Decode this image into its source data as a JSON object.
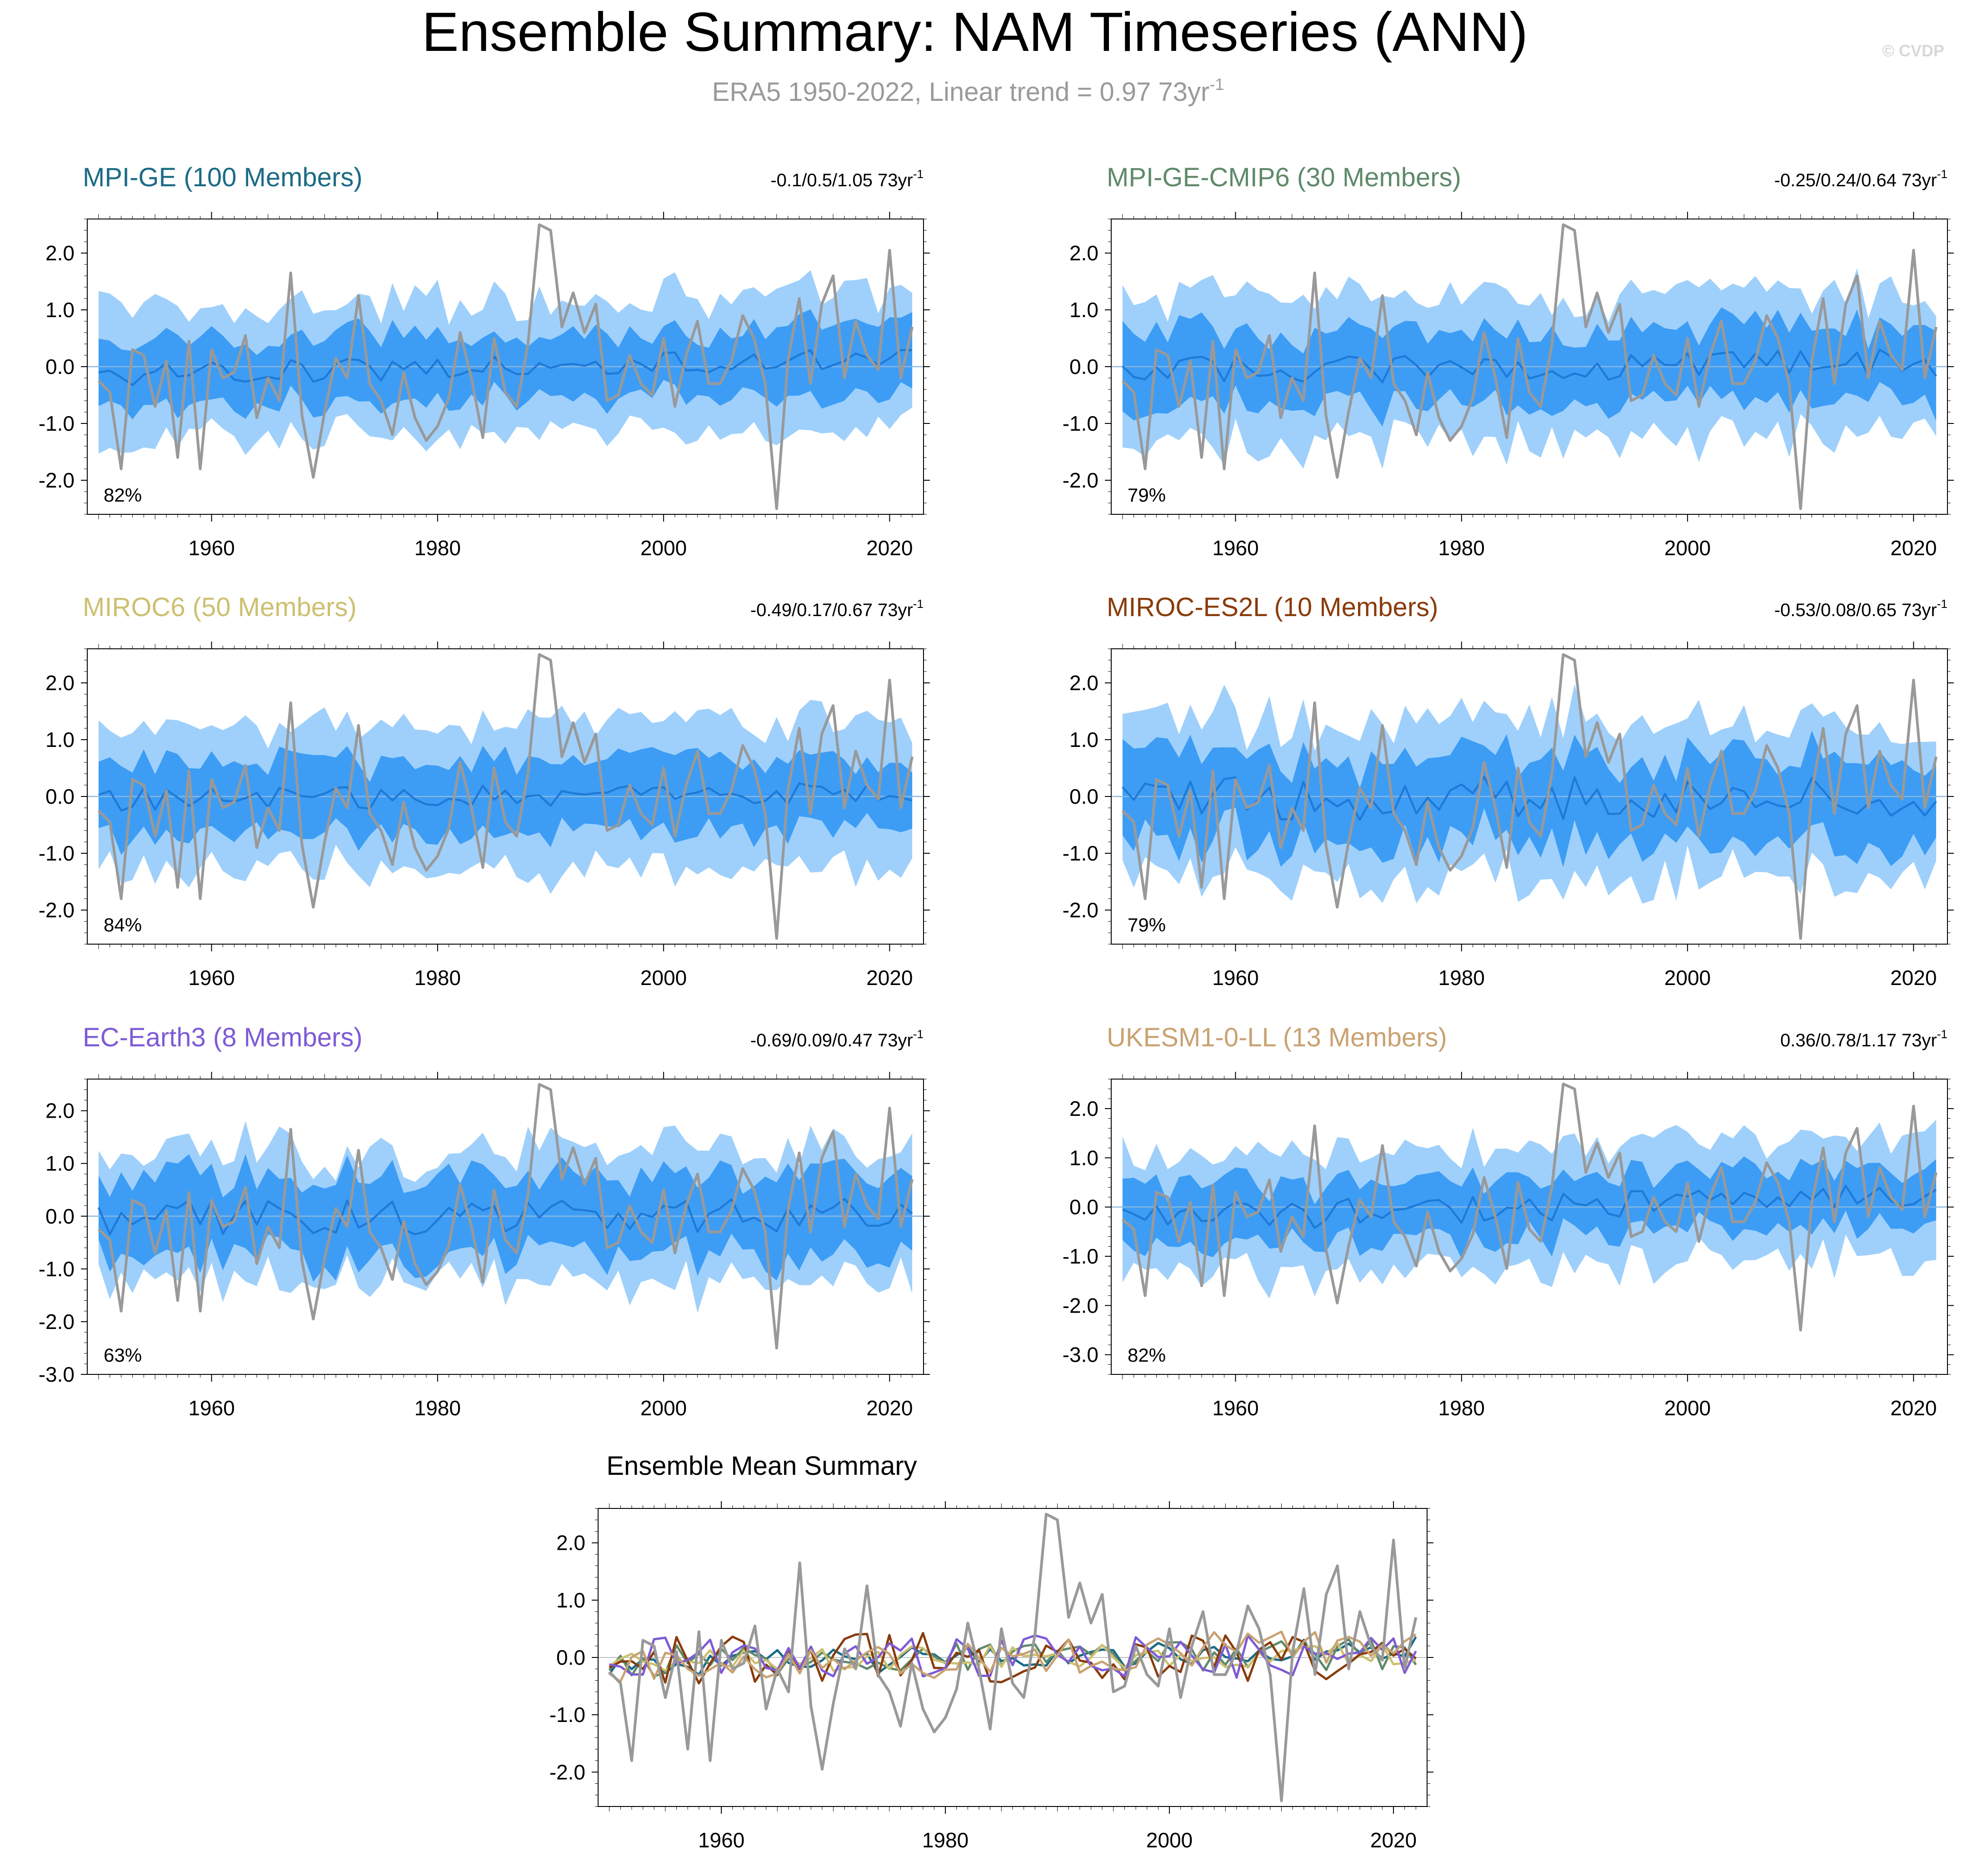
{
  "title": "Ensemble Summary: NAM Timeseries (ANN)",
  "subtitle": {
    "text": "ERA5 1950-2022, Linear trend = 0.97 73yr",
    "superscript": "-1"
  },
  "watermark": "© CVDP",
  "colors": {
    "observations": "#999999",
    "band_outer": "#9fd0fb",
    "band_inner": "#3d9df5",
    "ensemble_mean_line": "#1e7ad8",
    "zero_line": "#8ab8e0"
  },
  "observations_era5": {
    "name": "ERA5",
    "years": [
      1950,
      1951,
      1952,
      1953,
      1954,
      1955,
      1956,
      1957,
      1958,
      1959,
      1960,
      1961,
      1962,
      1963,
      1964,
      1965,
      1966,
      1967,
      1968,
      1969,
      1970,
      1971,
      1972,
      1973,
      1974,
      1975,
      1976,
      1977,
      1978,
      1979,
      1980,
      1981,
      1982,
      1983,
      1984,
      1985,
      1986,
      1987,
      1988,
      1989,
      1990,
      1991,
      1992,
      1993,
      1994,
      1995,
      1996,
      1997,
      1998,
      1999,
      2000,
      2001,
      2002,
      2003,
      2004,
      2005,
      2006,
      2007,
      2008,
      2009,
      2010,
      2011,
      2012,
      2013,
      2014,
      2015,
      2016,
      2017,
      2018,
      2019,
      2020,
      2021,
      2022
    ],
    "values": [
      -0.25,
      -0.45,
      -1.8,
      0.3,
      0.2,
      -0.7,
      0.1,
      -1.6,
      0.45,
      -1.8,
      0.3,
      -0.2,
      -0.1,
      0.55,
      -0.9,
      -0.2,
      -0.6,
      1.65,
      -0.85,
      -1.95,
      -0.8,
      0.15,
      -0.2,
      1.25,
      -0.3,
      -0.6,
      -1.2,
      -0.1,
      -0.9,
      -1.3,
      -1.05,
      -0.55,
      0.6,
      -0.2,
      -1.25,
      0.5,
      -0.45,
      -0.7,
      0.4,
      2.5,
      2.4,
      0.7,
      1.3,
      0.6,
      1.1,
      -0.6,
      -0.5,
      0.2,
      -0.3,
      -0.5,
      0.5,
      -0.7,
      0.2,
      0.8,
      -0.3,
      -0.3,
      0.1,
      0.9,
      0.5,
      -0.3,
      -2.5,
      0.1,
      1.2,
      -0.3,
      1.1,
      1.6,
      -0.2,
      0.8,
      0.2,
      -0.05,
      2.05,
      -0.2,
      0.7
    ]
  },
  "panels": [
    {
      "name": "MPI-GE (100 Members)",
      "color": "#1b6b86",
      "trend_text": "-0.1/0.5/1.05 73yr",
      "trend_sup": "-1",
      "percent": "82%",
      "yticks": [
        "2.0",
        "1.0",
        "0.0",
        "-1.0",
        "-2.0"
      ],
      "xticks": [
        "1960",
        "1980",
        "2000",
        "2020"
      ]
    },
    {
      "name": "MPI-GE-CMIP6 (30 Members)",
      "color": "#5f8a6a",
      "trend_text": "-0.25/0.24/0.64 73yr",
      "trend_sup": "-1",
      "percent": "79%",
      "yticks": [
        "2.0",
        "1.0",
        "0.0",
        "-1.0",
        "-2.0"
      ],
      "xticks": [
        "1960",
        "1980",
        "2000",
        "2020"
      ]
    },
    {
      "name": "MIROC6 (50 Members)",
      "color": "#cdc070",
      "trend_text": "-0.49/0.17/0.67 73yr",
      "trend_sup": "-1",
      "percent": "84%",
      "yticks": [
        "2.0",
        "1.0",
        "0.0",
        "-1.0",
        "-2.0"
      ],
      "xticks": [
        "1960",
        "1980",
        "2000",
        "2020"
      ]
    },
    {
      "name": "MIROC-ES2L (10 Members)",
      "color": "#8a3b0a",
      "trend_text": "-0.53/0.08/0.65 73yr",
      "trend_sup": "-1",
      "percent": "79%",
      "yticks": [
        "2.0",
        "1.0",
        "0.0",
        "-1.0",
        "-2.0"
      ],
      "xticks": [
        "1960",
        "1980",
        "2000",
        "2020"
      ]
    },
    {
      "name": "EC-Earth3 (8 Members)",
      "color": "#7e5ad6",
      "trend_text": "-0.69/0.09/0.47 73yr",
      "trend_sup": "-1",
      "percent": "63%",
      "yticks": [
        "2.0",
        "1.0",
        "0.0",
        "-1.0",
        "-2.0",
        "-3.0"
      ],
      "xticks": [
        "1960",
        "1980",
        "2000",
        "2020"
      ]
    },
    {
      "name": "UKESM1-0-LL (13 Members)",
      "color": "#c9a272",
      "trend_text": "0.36/0.78/1.17 73yr",
      "trend_sup": "-1",
      "percent": "82%",
      "yticks": [
        "2.0",
        "1.0",
        "0.0",
        "-1.0",
        "-2.0",
        "-3.0"
      ],
      "xticks": [
        "1960",
        "1980",
        "2000",
        "2020"
      ]
    }
  ],
  "summary": {
    "title": "Ensemble Mean Summary",
    "yticks": [
      "2.0",
      "1.0",
      "0.0",
      "-1.0",
      "-2.0"
    ],
    "xticks": [
      "1960",
      "1980",
      "2000",
      "2020"
    ]
  },
  "chart_data": {
    "type": "line",
    "title": "Ensemble Summary: NAM Timeseries (ANN)",
    "x": "years 1950-2022 (annual)",
    "xlim": [
      1949,
      2023
    ],
    "series_obs": "ERA5 (gray line, shown in every panel)",
    "note": "Each model panel shows ensemble spread bands (outer light band ~ full range, inner dark band ~ interquartile), ensemble mean line, and ERA5 observations; per-panel ylim given below",
    "panels": [
      {
        "model": "MPI-GE",
        "ylim": [
          -2.6,
          2.6
        ],
        "band_outer": 1.2,
        "band_inner": 0.6,
        "ensemble_mean_amp": 0.2,
        "trend_min_mean_max": [
          -0.1,
          0.5,
          1.05
        ]
      },
      {
        "model": "MPI-GE-CMIP6",
        "ylim": [
          -2.6,
          2.6
        ],
        "band_outer": 1.3,
        "band_inner": 0.65,
        "ensemble_mean_amp": 0.25,
        "trend_min_mean_max": [
          -0.25,
          0.24,
          0.64
        ]
      },
      {
        "model": "MIROC6",
        "ylim": [
          -2.6,
          2.6
        ],
        "band_outer": 1.3,
        "band_inner": 0.65,
        "ensemble_mean_amp": 0.2,
        "trend_min_mean_max": [
          -0.49,
          0.17,
          0.67
        ]
      },
      {
        "model": "MIROC-ES2L",
        "ylim": [
          -2.6,
          2.6
        ],
        "band_outer": 1.4,
        "band_inner": 0.75,
        "ensemble_mean_amp": 0.4,
        "trend_min_mean_max": [
          -0.53,
          0.08,
          0.65
        ]
      },
      {
        "model": "EC-Earth3",
        "ylim": [
          -3.0,
          2.6
        ],
        "band_outer": 1.3,
        "band_inner": 0.75,
        "ensemble_mean_amp": 0.35,
        "trend_min_mean_max": [
          -0.69,
          0.09,
          0.47
        ]
      },
      {
        "model": "UKESM1-0-LL",
        "ylim": [
          -3.4,
          2.6
        ],
        "band_outer": 1.25,
        "band_inner": 0.6,
        "ensemble_mean_amp": 0.3,
        "trend_min_mean_max": [
          0.36,
          0.78,
          1.17
        ]
      }
    ],
    "summary_ylim": [
      -2.6,
      2.6
    ]
  }
}
